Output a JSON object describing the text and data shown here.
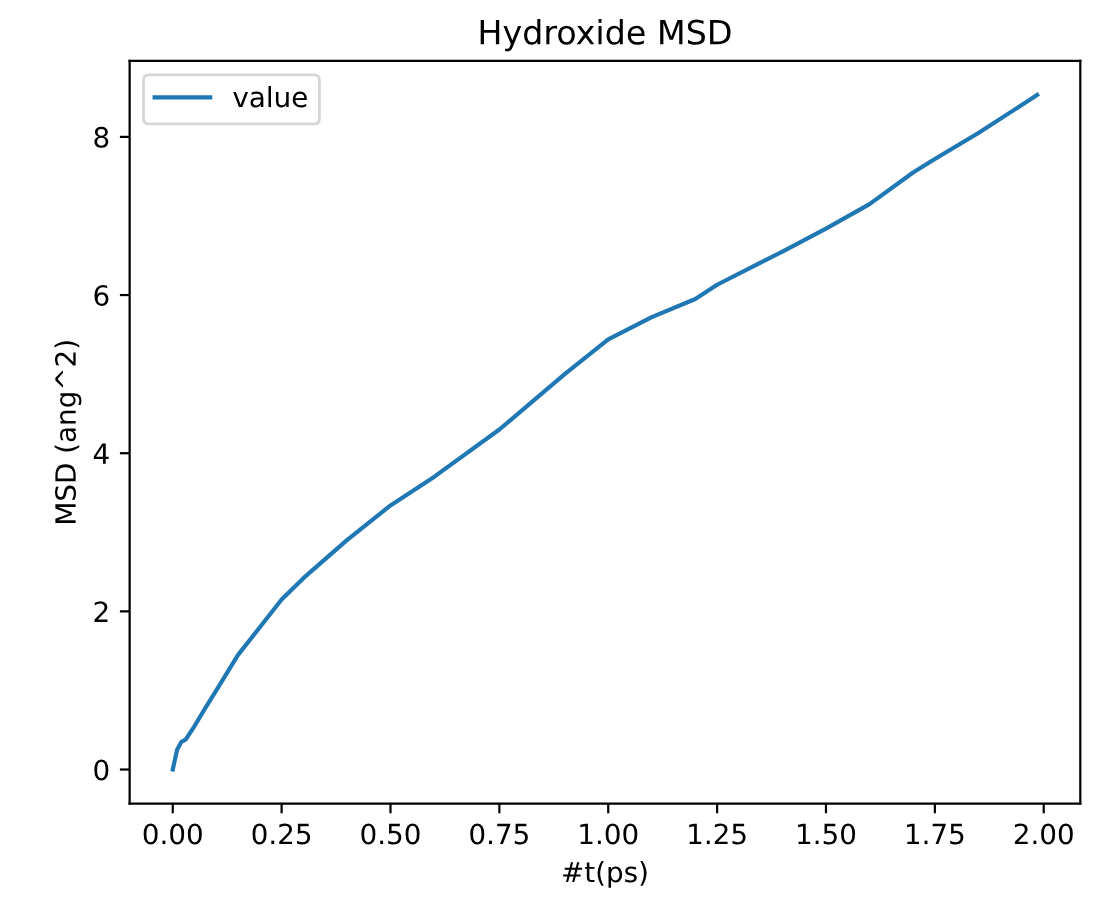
{
  "chart_data": {
    "type": "line",
    "title": "Hydroxide MSD",
    "xlabel": "#t(ps)",
    "ylabel": "MSD (ang^2)",
    "xlim": [
      -0.099,
      2.084
    ],
    "ylim": [
      -0.43,
      8.96
    ],
    "xticks": [
      {
        "value": 0,
        "label": "0.00"
      },
      {
        "value": 0.25,
        "label": "0.25"
      },
      {
        "value": 0.5,
        "label": "0.50"
      },
      {
        "value": 0.75,
        "label": "0.75"
      },
      {
        "value": 1,
        "label": "1.00"
      },
      {
        "value": 1.25,
        "label": "1.25"
      },
      {
        "value": 1.5,
        "label": "1.50"
      },
      {
        "value": 1.75,
        "label": "1.75"
      },
      {
        "value": 2,
        "label": "2.00"
      }
    ],
    "yticks": [
      0,
      2,
      4,
      6,
      8
    ],
    "legend": "upper left",
    "series": [
      {
        "name": "value",
        "color": "#1f77b4",
        "x": [
          0,
          0.01,
          0.02,
          0.03,
          0.05,
          0.075,
          0.1,
          0.15,
          0.2,
          0.25,
          0.3,
          0.4,
          0.5,
          0.6,
          0.75,
          0.9,
          1.0,
          1.1,
          1.2,
          1.25,
          1.4,
          1.5,
          1.6,
          1.7,
          1.75,
          1.85,
          1.985
        ],
        "values": [
          0,
          0.25,
          0.35,
          0.38,
          0.55,
          0.78,
          1.0,
          1.45,
          1.8,
          2.15,
          2.42,
          2.9,
          3.34,
          3.7,
          4.3,
          5.0,
          5.44,
          5.72,
          5.95,
          6.13,
          6.55,
          6.84,
          7.15,
          7.55,
          7.72,
          8.05,
          8.53
        ]
      }
    ]
  }
}
